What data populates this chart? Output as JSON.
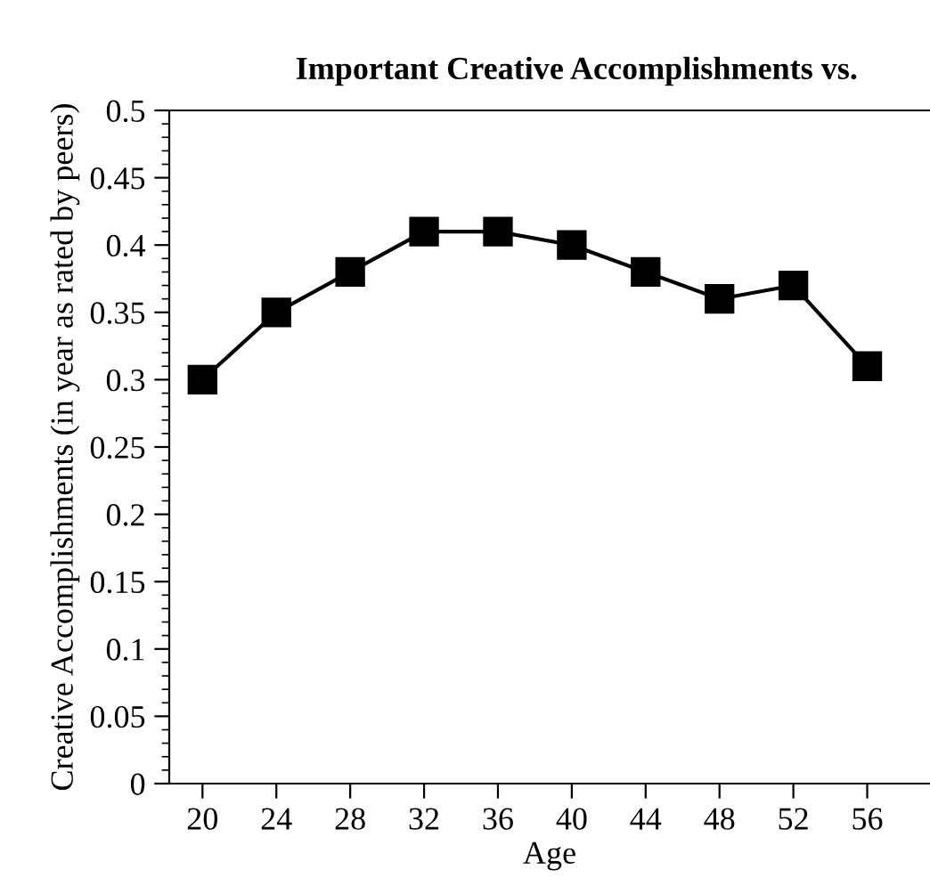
{
  "chart_data": {
    "type": "line",
    "title": "Important Creative Accomplishments vs.",
    "xlabel": "Age",
    "ylabel": "Creative Accomplishments (in year as rated by peers)",
    "x": [
      20,
      24,
      28,
      32,
      36,
      40,
      44,
      48,
      52,
      56
    ],
    "series": [
      {
        "color": "#000000",
        "values": [
          0.3,
          0.35,
          0.38,
          0.41,
          0.41,
          0.4,
          0.38,
          0.36,
          0.37,
          0.31
        ]
      }
    ],
    "xlim": [
      18.2,
      59.4
    ],
    "xticks": [
      20,
      24,
      28,
      32,
      36,
      40,
      44,
      48,
      52,
      56
    ],
    "ylim": [
      0,
      0.5
    ],
    "yticks": [
      0,
      0.05,
      0.1,
      0.15,
      0.2,
      0.25,
      0.3,
      0.35,
      0.4,
      0.45,
      0.5
    ],
    "marker": "square",
    "line_style": "solid",
    "grid": false,
    "legend": false
  }
}
